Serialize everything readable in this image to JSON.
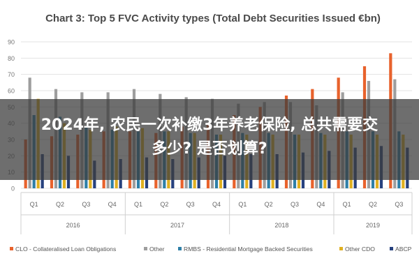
{
  "chart_data": {
    "type": "bar",
    "title": "Chart 3: Top 5 FVC Activity types (Total Debt Securities Issued €bn)",
    "ylim": [
      0,
      90
    ],
    "yticks": [
      0,
      10,
      20,
      30,
      40,
      50,
      60,
      70,
      80,
      90
    ],
    "grid": true,
    "legend_position": "bottom",
    "categories": [
      "Q1",
      "Q2",
      "Q3",
      "Q4",
      "Q1",
      "Q2",
      "Q3",
      "Q4",
      "Q1",
      "Q2",
      "Q3",
      "Q4",
      "Q1",
      "Q2",
      "Q3"
    ],
    "groups": [
      {
        "label": "2016",
        "count": 4
      },
      {
        "label": "2017",
        "count": 4
      },
      {
        "label": "2018",
        "count": 4
      },
      {
        "label": "2019",
        "count": 3
      }
    ],
    "series": [
      {
        "name": "CLO - Collateralised Loan Obligations",
        "color": "#e8622c",
        "values": [
          30,
          32,
          33,
          35,
          35,
          34,
          38,
          40,
          45,
          50,
          57,
          61,
          68,
          75,
          83
        ]
      },
      {
        "name": "Other",
        "color": "#9e9e9e",
        "values": [
          68,
          61,
          59,
          59,
          61,
          58,
          56,
          55,
          52,
          53,
          53,
          51,
          59,
          66,
          67
        ]
      },
      {
        "name": "RMBS - Residential Mortgage Backed Securities",
        "color": "#2e7fa7",
        "values": [
          45,
          44,
          38,
          36,
          35,
          35,
          34,
          33,
          34,
          34,
          33,
          34,
          35,
          35,
          35
        ]
      },
      {
        "name": "Other CDO",
        "color": "#e0b020",
        "values": [
          55,
          40,
          36,
          38,
          37,
          35,
          34,
          33,
          33,
          33,
          33,
          33,
          33,
          33,
          33
        ]
      },
      {
        "name": "ABCP",
        "color": "#27417e",
        "values": [
          21,
          20,
          17,
          18,
          19,
          18,
          19,
          20,
          21,
          21,
          22,
          23,
          25,
          26,
          25
        ]
      }
    ]
  },
  "overlay": {
    "line1": "2024年, 农民一次补缴3年养老保险, 总共需要交",
    "line2": "多少? 是否划算?"
  }
}
